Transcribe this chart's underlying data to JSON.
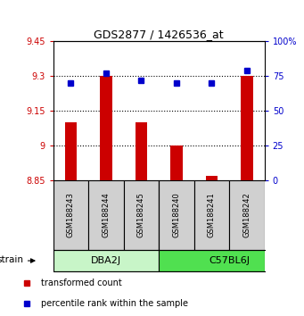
{
  "title": "GDS2877 / 1426536_at",
  "samples": [
    "GSM188243",
    "GSM188244",
    "GSM188245",
    "GSM188240",
    "GSM188241",
    "GSM188242"
  ],
  "group_labels": [
    "DBA2J",
    "C57BL6J"
  ],
  "transformed_counts": [
    9.1,
    9.3,
    9.1,
    9.0,
    8.87,
    9.3
  ],
  "percentile_ranks": [
    70,
    77,
    72,
    70,
    70,
    79
  ],
  "bar_color": "#cc0000",
  "dot_color": "#0000cc",
  "ylim_left": [
    8.85,
    9.45
  ],
  "ylim_right": [
    0,
    100
  ],
  "yticks_left": [
    8.85,
    9.0,
    9.15,
    9.3,
    9.45
  ],
  "yticks_right": [
    0,
    25,
    50,
    75,
    100
  ],
  "ytick_labels_left": [
    "8.85",
    "9",
    "9.15",
    "9.3",
    "9.45"
  ],
  "ytick_labels_right": [
    "0",
    "25",
    "50",
    "75",
    "100%"
  ],
  "hlines": [
    9.0,
    9.15,
    9.3
  ],
  "group_colors": [
    "#c8f5c8",
    "#50e050"
  ],
  "strain_label": "strain",
  "bar_bottom": 8.85,
  "legend_labels": [
    "transformed count",
    "percentile rank within the sample"
  ],
  "legend_colors": [
    "#cc0000",
    "#0000cc"
  ],
  "sample_box_color": "#d0d0d0",
  "bar_width": 0.35
}
